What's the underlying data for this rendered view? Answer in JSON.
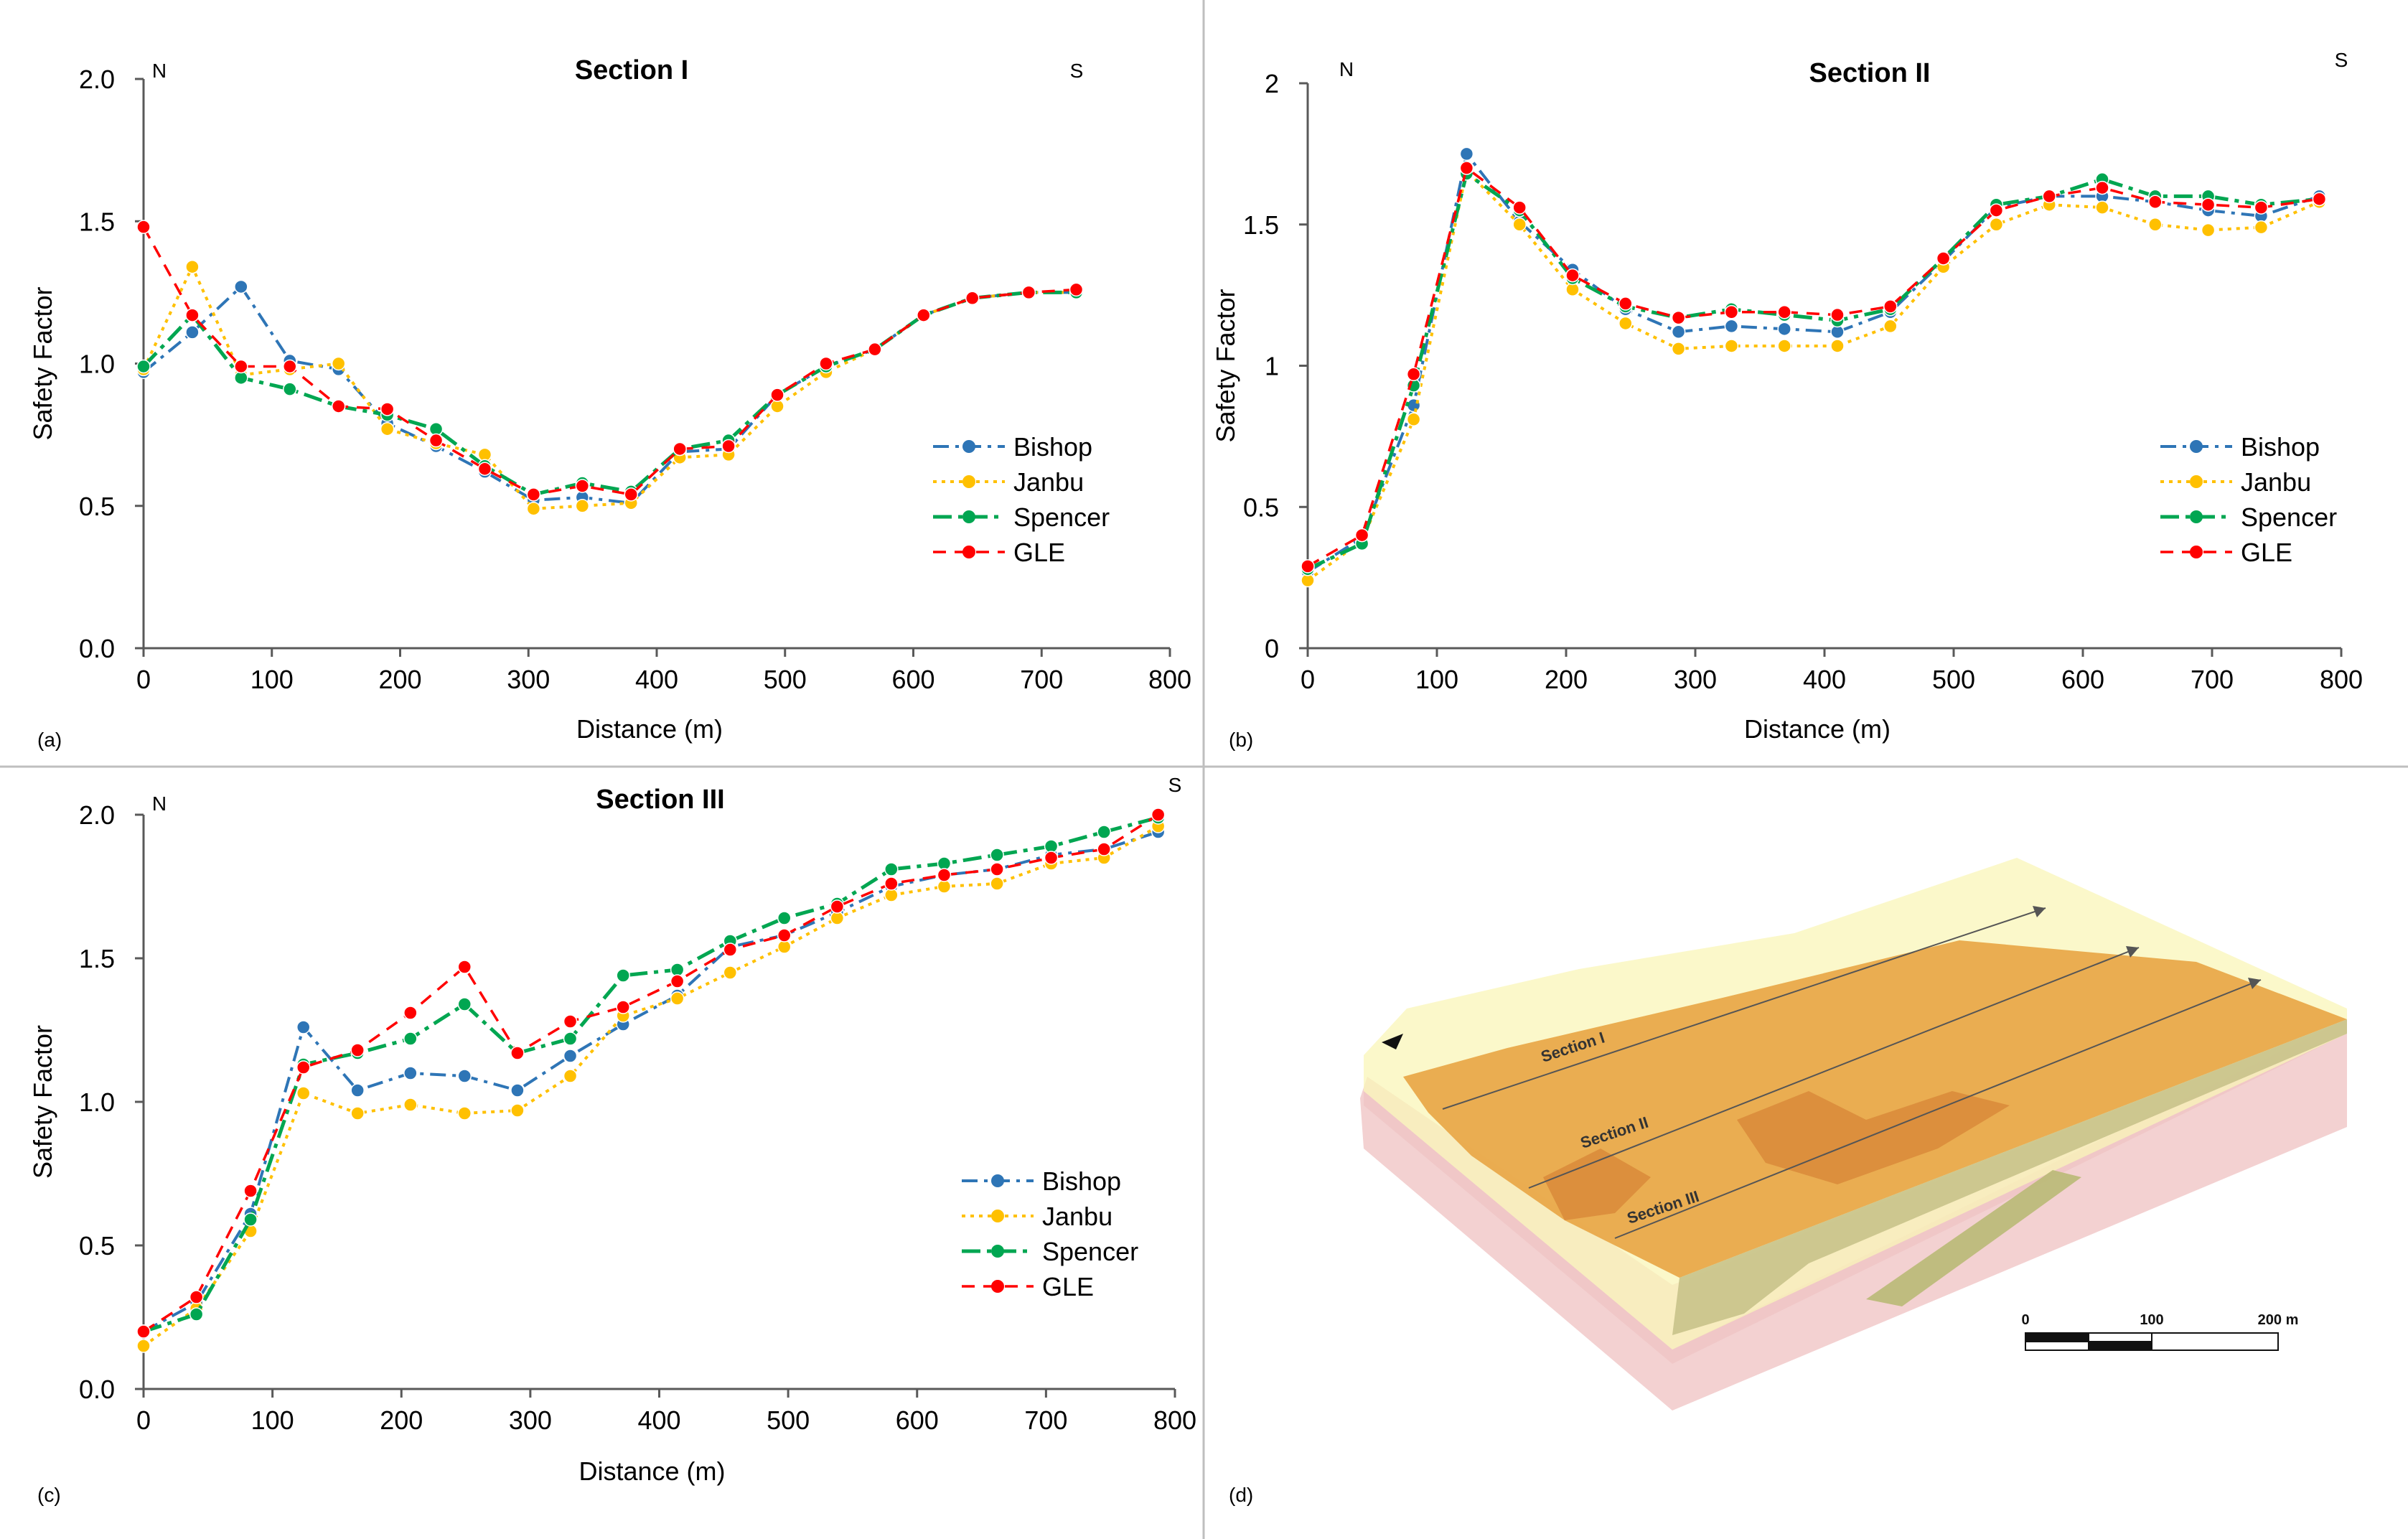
{
  "colors": {
    "bishop": "#2E75B6",
    "janbu": "#FFC000",
    "spencer": "#00A651",
    "gle": "#FF0000",
    "axis": "#595959",
    "divider": "#BFBFBF"
  },
  "panel_d": {
    "tag": "(d)",
    "section_labels": [
      "Section I",
      "Section II",
      "Section III"
    ],
    "scale_bar": {
      "ticks": [
        "0",
        "100",
        "200 m"
      ]
    }
  },
  "chart_data": [
    {
      "type": "line",
      "panel": "(a)",
      "title": "Section I",
      "xlabel": "Distance (m)",
      "ylabel": "Safety Factor",
      "xlim": [
        0,
        800
      ],
      "ylim": [
        0,
        2
      ],
      "xticks": [
        0,
        100,
        200,
        300,
        400,
        500,
        600,
        700,
        800
      ],
      "xtick_labels": [
        "0",
        "100",
        "200",
        "300",
        "400",
        "500",
        "600",
        "700",
        "800"
      ],
      "yticks": [
        0,
        0.5,
        1,
        1.5,
        2
      ],
      "ytick_labels": [
        "0.0",
        "0.5",
        "1.0",
        "1.5",
        "2.0"
      ],
      "annotations": {
        "left": "N",
        "right": "S"
      },
      "legend_position": "center-right",
      "series": [
        {
          "name": "Bishop",
          "key": "bishop",
          "x": [
            0,
            38,
            76,
            114,
            152,
            190,
            228,
            266,
            304,
            342,
            380,
            418,
            456,
            494,
            532,
            570,
            608,
            646,
            690,
            727
          ],
          "y": [
            0.97,
            1.11,
            1.27,
            1.01,
            0.98,
            0.79,
            0.71,
            0.62,
            0.52,
            0.53,
            0.51,
            0.69,
            0.7,
            0.89,
            0.99,
            1.05,
            1.17,
            1.23,
            1.25,
            1.25
          ]
        },
        {
          "name": "Janbu",
          "key": "janbu",
          "x": [
            0,
            38,
            76,
            114,
            152,
            190,
            228,
            266,
            304,
            342,
            380,
            418,
            456,
            494,
            532,
            570,
            608,
            646,
            690,
            727
          ],
          "y": [
            0.98,
            1.34,
            0.96,
            0.98,
            1.0,
            0.77,
            0.72,
            0.68,
            0.49,
            0.5,
            0.51,
            0.67,
            0.68,
            0.85,
            0.97,
            1.05,
            1.17,
            1.23,
            1.25,
            1.25
          ]
        },
        {
          "name": "Spencer",
          "key": "spencer",
          "x": [
            0,
            38,
            76,
            114,
            152,
            190,
            228,
            266,
            304,
            342,
            380,
            418,
            456,
            494,
            532,
            570,
            608,
            646,
            690,
            727
          ],
          "y": [
            0.99,
            1.17,
            0.95,
            0.91,
            0.85,
            0.82,
            0.77,
            0.64,
            0.54,
            0.58,
            0.55,
            0.7,
            0.73,
            0.89,
            0.99,
            1.05,
            1.17,
            1.23,
            1.25,
            1.25
          ]
        },
        {
          "name": "GLE",
          "key": "gle",
          "x": [
            0,
            38,
            76,
            114,
            152,
            190,
            228,
            266,
            304,
            342,
            380,
            418,
            456,
            494,
            532,
            570,
            608,
            646,
            690,
            727
          ],
          "y": [
            1.48,
            1.17,
            0.99,
            0.99,
            0.85,
            0.84,
            0.73,
            0.63,
            0.54,
            0.57,
            0.54,
            0.7,
            0.71,
            0.89,
            1.0,
            1.05,
            1.17,
            1.23,
            1.25,
            1.26
          ]
        }
      ]
    },
    {
      "type": "line",
      "panel": "(b)",
      "title": "Section II",
      "xlabel": "Distance (m)",
      "ylabel": "Safety Factor",
      "xlim": [
        0,
        800
      ],
      "ylim": [
        0,
        2
      ],
      "xticks": [
        0,
        100,
        200,
        300,
        400,
        500,
        600,
        700,
        800
      ],
      "xtick_labels": [
        "0",
        "100",
        "200",
        "300",
        "400",
        "500",
        "600",
        "700",
        "800"
      ],
      "yticks": [
        0,
        0.5,
        1,
        1.5,
        2
      ],
      "ytick_labels": [
        "0",
        "0.5",
        "1",
        "1.5",
        "2"
      ],
      "annotations": {
        "left": "N",
        "right": "S"
      },
      "legend_position": "center-right",
      "series": [
        {
          "name": "Bishop",
          "key": "bishop",
          "x": [
            0,
            42,
            82,
            123,
            164,
            205,
            246,
            287,
            328,
            369,
            410,
            451,
            492,
            533,
            574,
            615,
            656,
            697,
            738,
            783
          ],
          "y": [
            0.27,
            0.39,
            0.86,
            1.75,
            1.51,
            1.34,
            1.2,
            1.12,
            1.14,
            1.13,
            1.12,
            1.19,
            1.37,
            1.56,
            1.6,
            1.6,
            1.58,
            1.55,
            1.53,
            1.6
          ]
        },
        {
          "name": "Janbu",
          "key": "janbu",
          "x": [
            0,
            42,
            82,
            123,
            164,
            205,
            246,
            287,
            328,
            369,
            410,
            451,
            492,
            533,
            574,
            615,
            656,
            697,
            738,
            783
          ],
          "y": [
            0.24,
            0.38,
            0.81,
            1.69,
            1.5,
            1.27,
            1.15,
            1.06,
            1.07,
            1.07,
            1.07,
            1.14,
            1.35,
            1.5,
            1.57,
            1.56,
            1.5,
            1.48,
            1.49,
            1.58
          ]
        },
        {
          "name": "Spencer",
          "key": "spencer",
          "x": [
            0,
            42,
            82,
            123,
            164,
            205,
            246,
            287,
            328,
            369,
            410,
            451,
            492,
            533,
            574,
            615,
            656,
            697,
            738,
            783
          ],
          "y": [
            0.28,
            0.37,
            0.93,
            1.68,
            1.55,
            1.31,
            1.21,
            1.17,
            1.2,
            1.18,
            1.16,
            1.2,
            1.38,
            1.57,
            1.6,
            1.66,
            1.6,
            1.6,
            1.57,
            1.59
          ]
        },
        {
          "name": "GLE",
          "key": "gle",
          "x": [
            0,
            42,
            82,
            123,
            164,
            205,
            246,
            287,
            328,
            369,
            410,
            451,
            492,
            533,
            574,
            615,
            656,
            697,
            738,
            783
          ],
          "y": [
            0.29,
            0.4,
            0.97,
            1.7,
            1.56,
            1.32,
            1.22,
            1.17,
            1.19,
            1.19,
            1.18,
            1.21,
            1.38,
            1.55,
            1.6,
            1.63,
            1.58,
            1.57,
            1.56,
            1.59
          ]
        }
      ]
    },
    {
      "type": "line",
      "panel": "(c)",
      "title": "Section III",
      "xlabel": "Distance (m)",
      "ylabel": "Safety Factor",
      "xlim": [
        0,
        800
      ],
      "ylim": [
        0,
        2
      ],
      "xticks": [
        0,
        100,
        200,
        300,
        400,
        500,
        600,
        700,
        800
      ],
      "xtick_labels": [
        "0",
        "100",
        "200",
        "300",
        "400",
        "500",
        "600",
        "700",
        "800"
      ],
      "yticks": [
        0,
        0.5,
        1,
        1.5,
        2
      ],
      "ytick_labels": [
        "0.0",
        "0.5",
        "1.0",
        "1.5",
        "2.0"
      ],
      "annotations": {
        "left": "N",
        "right": "S"
      },
      "legend_position": "center-right",
      "series": [
        {
          "name": "Bishop",
          "key": "bishop",
          "x": [
            0,
            41,
            83,
            124,
            166,
            207,
            249,
            290,
            331,
            372,
            414,
            455,
            497,
            538,
            580,
            621,
            662,
            704,
            745,
            787
          ],
          "y": [
            0.2,
            0.3,
            0.61,
            1.26,
            1.04,
            1.1,
            1.09,
            1.04,
            1.16,
            1.27,
            1.37,
            1.54,
            1.58,
            1.66,
            1.75,
            1.79,
            1.81,
            1.86,
            1.88,
            1.94
          ]
        },
        {
          "name": "Janbu",
          "key": "janbu",
          "x": [
            0,
            41,
            83,
            124,
            166,
            207,
            249,
            290,
            331,
            372,
            414,
            455,
            497,
            538,
            580,
            621,
            662,
            704,
            745,
            787
          ],
          "y": [
            0.15,
            0.28,
            0.55,
            1.03,
            0.96,
            0.99,
            0.96,
            0.97,
            1.09,
            1.3,
            1.36,
            1.45,
            1.54,
            1.64,
            1.72,
            1.75,
            1.76,
            1.83,
            1.85,
            1.96
          ]
        },
        {
          "name": "Spencer",
          "key": "spencer",
          "x": [
            0,
            41,
            83,
            124,
            166,
            207,
            249,
            290,
            331,
            372,
            414,
            455,
            497,
            538,
            580,
            621,
            662,
            704,
            745,
            787
          ],
          "y": [
            0.2,
            0.26,
            0.59,
            1.13,
            1.17,
            1.22,
            1.34,
            1.17,
            1.22,
            1.44,
            1.46,
            1.56,
            1.64,
            1.69,
            1.81,
            1.83,
            1.86,
            1.89,
            1.94,
            1.99
          ]
        },
        {
          "name": "GLE",
          "key": "gle",
          "x": [
            0,
            41,
            83,
            124,
            166,
            207,
            249,
            290,
            331,
            372,
            414,
            455,
            497,
            538,
            580,
            621,
            662,
            704,
            745,
            787
          ],
          "y": [
            0.2,
            0.32,
            0.69,
            1.12,
            1.18,
            1.31,
            1.47,
            1.17,
            1.28,
            1.33,
            1.42,
            1.53,
            1.58,
            1.68,
            1.76,
            1.79,
            1.81,
            1.85,
            1.88,
            2.0
          ]
        }
      ]
    }
  ]
}
